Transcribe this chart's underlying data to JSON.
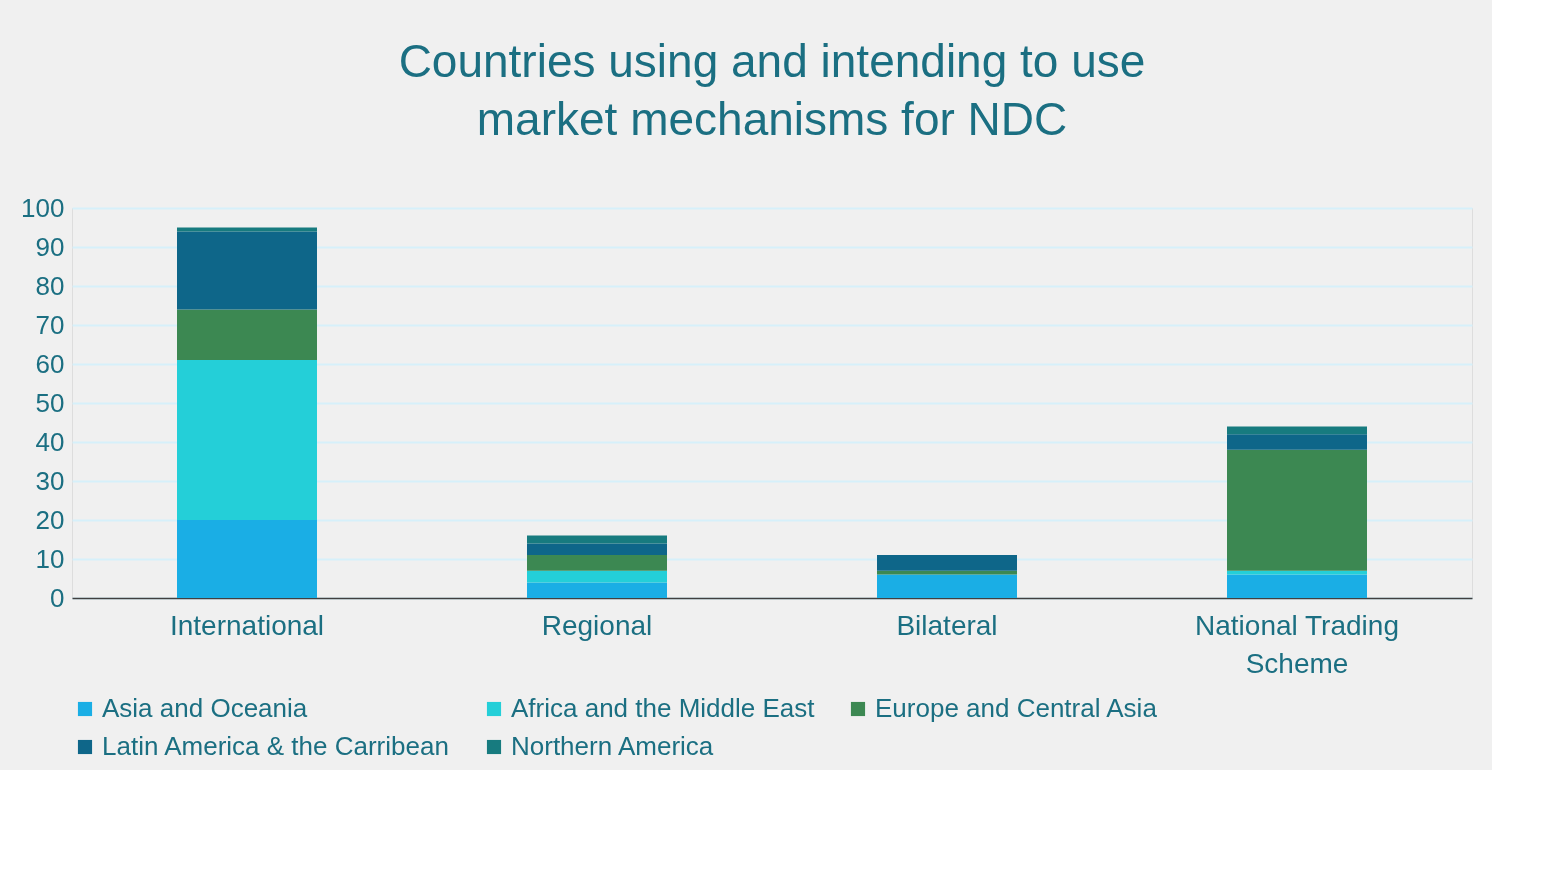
{
  "chart_data": {
    "type": "bar",
    "title": "Countries using and intending to use market mechanisms for NDC",
    "categories": [
      "International",
      "Regional",
      "Bilateral",
      "National Trading Scheme"
    ],
    "stacked": true,
    "series": [
      {
        "name": "Asia and Oceania",
        "color": "#1aaee5",
        "values": [
          20,
          4,
          6,
          6
        ]
      },
      {
        "name": "Africa and the Middle East",
        "color": "#24cfd8",
        "values": [
          41,
          3,
          0,
          1
        ]
      },
      {
        "name": "Europe and Central Asia",
        "color": "#3c8852",
        "values": [
          13,
          4,
          1,
          31
        ]
      },
      {
        "name": "Latin America & the Carribean",
        "color": "#0e6689",
        "values": [
          20,
          3,
          4,
          4
        ]
      },
      {
        "name": "Northern America",
        "color": "#177b7f",
        "values": [
          1,
          2,
          0,
          2
        ]
      }
    ],
    "ylim": [
      0,
      100
    ],
    "yticks": [
      0,
      10,
      20,
      30,
      40,
      50,
      60,
      70,
      80,
      90,
      100
    ],
    "grid": "y",
    "legend": "bottom"
  }
}
